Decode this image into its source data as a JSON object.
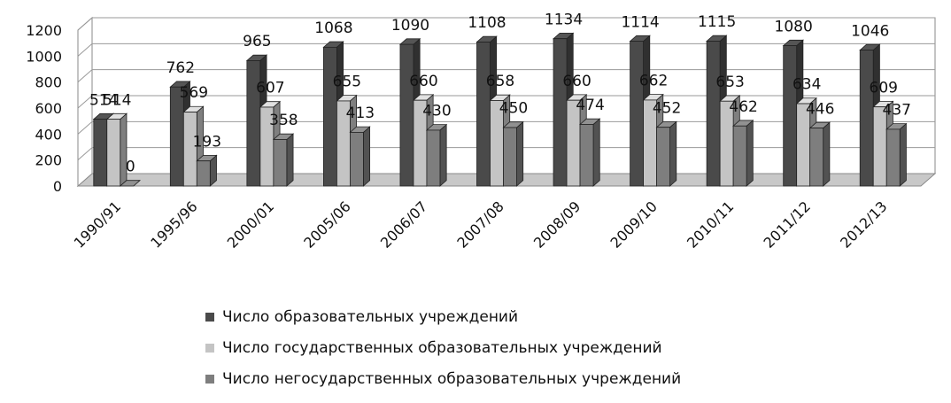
{
  "chart_data": {
    "type": "bar",
    "categories": [
      "1990/91",
      "1995/96",
      "2000/01",
      "2005/06",
      "2006/07",
      "2007/08",
      "2008/09",
      "2009/10",
      "2010/11",
      "2011/12",
      "2012/13"
    ],
    "series": [
      {
        "name": "Число образовательных учреждений",
        "values": [
          514,
          762,
          965,
          1068,
          1090,
          1108,
          1134,
          1114,
          1115,
          1080,
          1046
        ],
        "color": "#4a4a4a"
      },
      {
        "name": "Число государственных образовательных учреждений",
        "values": [
          514,
          569,
          607,
          655,
          660,
          658,
          660,
          662,
          653,
          634,
          609
        ],
        "color": "#c4c4c4"
      },
      {
        "name": "Число негосударственных образовательных учреждений",
        "values": [
          0,
          193,
          358,
          413,
          430,
          450,
          474,
          452,
          462,
          446,
          437
        ],
        "color": "#7e7e7e"
      }
    ],
    "ylim": [
      0,
      1200
    ],
    "yticks": [
      "0",
      "200",
      "400",
      "600",
      "800",
      "1000",
      "1200"
    ],
    "grid": true,
    "legend_position": "bottom",
    "style": "3d-clustered-column"
  }
}
